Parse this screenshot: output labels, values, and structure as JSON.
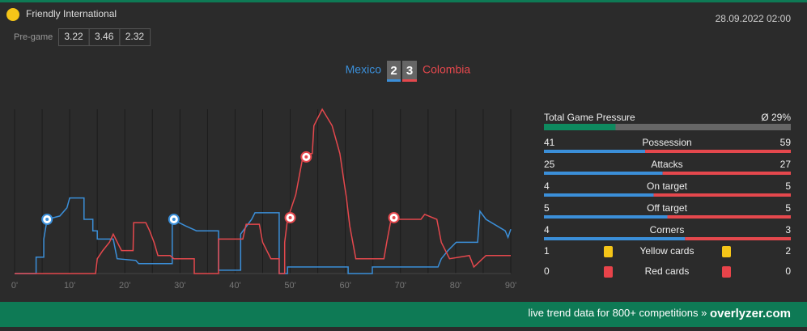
{
  "header": {
    "competition": "Friendly International",
    "datetime": "28.09.2022 02:00",
    "pregame_label": "Pre-game",
    "odds": [
      3.22,
      3.46,
      2.32
    ]
  },
  "score": [
    2,
    3
  ],
  "chart_data": {
    "type": "line",
    "xlim": [
      0,
      90
    ],
    "ylim": [
      0,
      100
    ],
    "xticks": [
      {
        "value": 0,
        "label": "0'"
      },
      {
        "value": 10,
        "label": "10'"
      },
      {
        "value": 20,
        "label": "20'"
      },
      {
        "value": 30,
        "label": "30'"
      },
      {
        "value": 40,
        "label": "40'"
      },
      {
        "value": 50,
        "label": "50'"
      },
      {
        "value": 60,
        "label": "60'"
      },
      {
        "value": 70,
        "label": "70'"
      },
      {
        "value": 80,
        "label": "80'"
      },
      {
        "value": 90,
        "label": "90'"
      }
    ],
    "grid": true,
    "series": [
      {
        "name": "Mexico",
        "color": "#3b8fd9",
        "x": [
          0,
          3.9,
          3.9,
          5.3,
          5.3,
          5.9,
          8.2,
          9.5,
          10,
          12.6,
          12.6,
          14.2,
          14.2,
          15,
          15,
          17.9,
          18.6,
          22,
          22.5,
          28.6,
          28.6,
          31,
          33,
          37,
          37,
          41,
          41,
          43,
          43.6,
          48,
          48,
          49.5,
          49.5,
          60.5,
          60.5,
          64.9,
          64.9,
          76.8,
          77.4,
          78.6,
          80.1,
          84,
          84.4,
          85.5,
          89,
          89.5,
          90
        ],
        "values": [
          0,
          0,
          10,
          10,
          21,
          33,
          35,
          40,
          46,
          46,
          33,
          33,
          26,
          26,
          21,
          21,
          9,
          8,
          6,
          6,
          33,
          29,
          26,
          26,
          2,
          2,
          24,
          33,
          37,
          37,
          0,
          0,
          4,
          4,
          0,
          0,
          4,
          4,
          9,
          14,
          19,
          19,
          38,
          33,
          26,
          22,
          27
        ],
        "goals": [
          {
            "x": 5.9,
            "y": 33
          },
          {
            "x": 28.9,
            "y": 33
          }
        ]
      },
      {
        "name": "Colombia",
        "color": "#e5484d",
        "x": [
          0,
          14.7,
          15,
          16,
          17.2,
          17.9,
          19.4,
          21.5,
          21.6,
          23.8,
          24.5,
          25.3,
          26,
          28.2,
          28.9,
          32.6,
          32.6,
          37,
          37,
          41.4,
          42,
          44.4,
          45,
          46.5,
          48,
          48,
          49,
          49,
          49.5,
          51,
          52.4,
          54,
          54.3,
          55.8,
          57.6,
          59,
          60.2,
          60.8,
          61.9,
          67,
          67.5,
          68.3,
          73.7,
          74.4,
          76.6,
          77.4,
          78.9,
          82.5,
          83.3,
          85.5,
          90
        ],
        "values": [
          0,
          0,
          9,
          14,
          19,
          24,
          14,
          14,
          31,
          31,
          26,
          19,
          11,
          11,
          9,
          9,
          0,
          0,
          21,
          21,
          30,
          30,
          19,
          9,
          9,
          0,
          0,
          19,
          33,
          48,
          73,
          73,
          90,
          100,
          90,
          73,
          46,
          29,
          9,
          9,
          19,
          33,
          33,
          36,
          33,
          19,
          9,
          11,
          4,
          11,
          11
        ],
        "goals": [
          {
            "x": 50,
            "y": 34
          },
          {
            "x": 52.9,
            "y": 71
          },
          {
            "x": 68.8,
            "y": 34
          }
        ]
      }
    ]
  },
  "pressure": {
    "label": "Total Game Pressure",
    "value": 29,
    "value_label": "Ø 29%"
  },
  "stats": [
    {
      "label": "Possession",
      "home": 41,
      "away": 59
    },
    {
      "label": "Attacks",
      "home": 25,
      "away": 27
    },
    {
      "label": "On target",
      "home": 4,
      "away": 5
    },
    {
      "label": "Off target",
      "home": 5,
      "away": 5
    },
    {
      "label": "Corners",
      "home": 4,
      "away": 3
    }
  ],
  "cards": [
    {
      "label": "Yellow cards",
      "home": 1,
      "away": 2
    },
    {
      "label": "Red cards",
      "home": 0,
      "away": 0
    }
  ],
  "footer": {
    "text": "live trend data for 800+ competitions »",
    "brand": "overlyzer.com"
  }
}
